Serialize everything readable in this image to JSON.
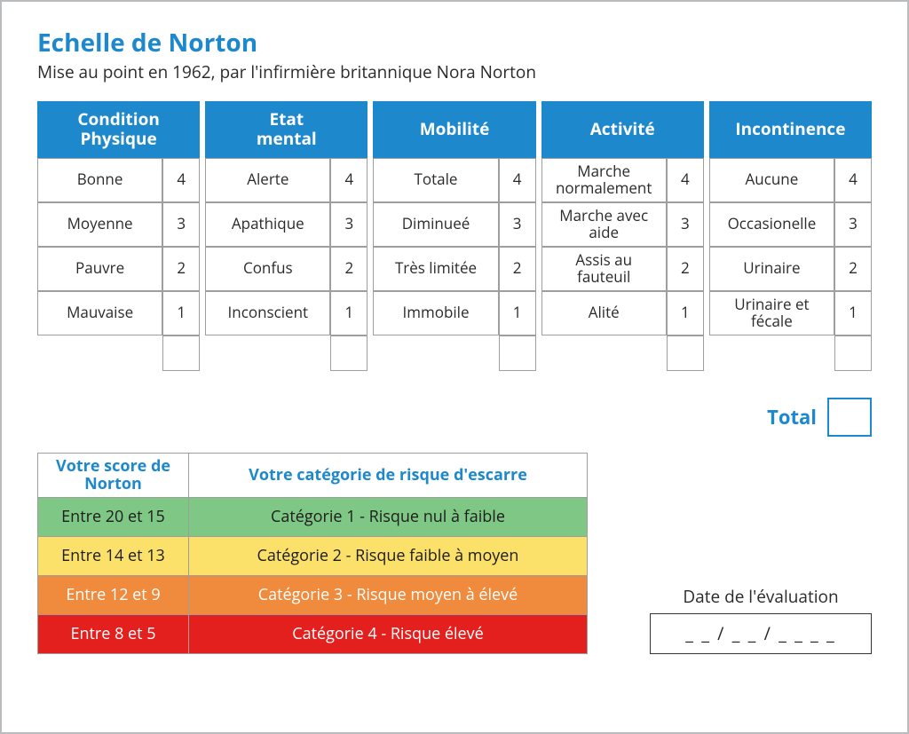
{
  "title": "Echelle de Norton",
  "subtitle": "Mise au point en 1962, par l'infirmière britannique Nora Norton",
  "columns": [
    {
      "header": "Condition Physique",
      "rows": [
        {
          "label": "Bonne",
          "score": "4"
        },
        {
          "label": "Moyenne",
          "score": "3"
        },
        {
          "label": "Pauvre",
          "score": "2"
        },
        {
          "label": "Mauvaise",
          "score": "1"
        }
      ]
    },
    {
      "header": "Etat mental",
      "rows": [
        {
          "label": "Alerte",
          "score": "4"
        },
        {
          "label": "Apathique",
          "score": "3"
        },
        {
          "label": "Confus",
          "score": "2"
        },
        {
          "label": "Inconscient",
          "score": "1"
        }
      ]
    },
    {
      "header": "Mobilité",
      "rows": [
        {
          "label": "Totale",
          "score": "4"
        },
        {
          "label": "Diminueé",
          "score": "3"
        },
        {
          "label": "Très limitée",
          "score": "2"
        },
        {
          "label": "Immobile",
          "score": "1"
        }
      ]
    },
    {
      "header": "Activité",
      "rows": [
        {
          "label": "Marche normalement",
          "score": "4"
        },
        {
          "label": "Marche avec aide",
          "score": "3"
        },
        {
          "label": "Assis au fauteuil",
          "score": "2"
        },
        {
          "label": "Alité",
          "score": "1"
        }
      ]
    },
    {
      "header": "Incontinence",
      "rows": [
        {
          "label": "Aucune",
          "score": "4"
        },
        {
          "label": "Occasionelle",
          "score": "3"
        },
        {
          "label": "Urinaire",
          "score": "2"
        },
        {
          "label": "Urinaire et fécale",
          "score": "1"
        }
      ]
    }
  ],
  "total_label": "Total",
  "risk": {
    "score_header": "Votre score de Norton",
    "category_header": "Votre catégorie de risque d'escarre",
    "rows": [
      {
        "range": "Entre 20 et 15",
        "category": "Catégorie 1 - Risque nul à faible",
        "class": "r-green"
      },
      {
        "range": "Entre 14 et 13",
        "category": "Catégorie 2 - Risque faible à moyen",
        "class": "r-yellow"
      },
      {
        "range": "Entre 12 et 9",
        "category": "Catégorie 3 - Risque moyen à élevé",
        "class": "r-orange"
      },
      {
        "range": "Entre 8 et 5",
        "category": "Catégorie 4 - Risque élevé",
        "class": "r-red"
      }
    ]
  },
  "date_label": "Date de l'évaluation",
  "date_placeholder": "_ _ / _ _ / _ _ _ _",
  "colors": {
    "brand_blue": "#1e88cc",
    "border_gray": "#9e9e9e",
    "page_border": "#b9bcbe",
    "text": "#2b2b2b",
    "green": "#7fc784",
    "yellow": "#fbe06a",
    "orange": "#f08a3c",
    "red": "#e4201f"
  }
}
